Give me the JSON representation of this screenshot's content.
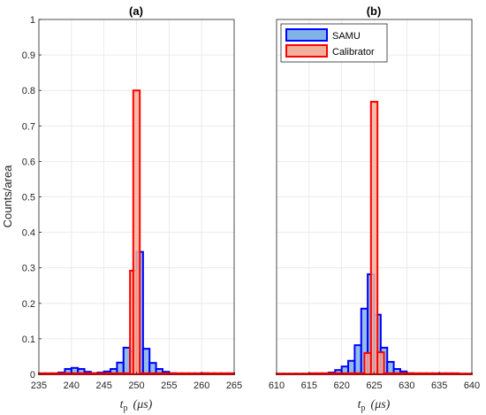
{
  "chart_data": [
    {
      "type": "bar",
      "title": "(a)",
      "ylabel": "Counts/area",
      "xlabel_main": "t",
      "xlabel_sub": "p",
      "xlabel_unit": "(μs)",
      "xlim": [
        235,
        265
      ],
      "ylim": [
        0,
        1
      ],
      "xticks": [
        "235",
        "240",
        "245",
        "250",
        "255",
        "260",
        "265"
      ],
      "yticks": [
        "0",
        "0.1",
        "0.2",
        "0.3",
        "0.4",
        "0.5",
        "0.6",
        "0.7",
        "0.8",
        "0.9",
        "1"
      ],
      "grid": true,
      "series": [
        {
          "name": "SAMU",
          "color": "#0000ff",
          "fill": "#7fb2e5",
          "x": [
            235.5,
            236.5,
            237.5,
            238.5,
            239.5,
            240.5,
            241.5,
            242.5,
            243.5,
            244.5,
            245.5,
            246.5,
            247.5,
            248.5,
            249.5,
            250.5,
            251.5,
            252.5,
            253.5,
            254.5,
            255.5,
            256.5,
            257.5,
            258.5,
            259.5,
            260.5,
            261.5,
            262.5,
            263.5,
            264.5
          ],
          "values": [
            0,
            0,
            0.002,
            0.005,
            0.015,
            0.018,
            0.015,
            0.007,
            0.003,
            0.005,
            0.008,
            0.015,
            0.033,
            0.075,
            0.065,
            0.345,
            0.072,
            0.032,
            0.015,
            0.007,
            0.003,
            0.002,
            0.002,
            0.002,
            0.002,
            0.003,
            0.002,
            0.001,
            0,
            0
          ]
        },
        {
          "name": "Calibrator",
          "color": "#ff0000",
          "fill": "#f2b09b",
          "x": [
            235.5,
            236.5,
            237.5,
            238.5,
            239.5,
            240.5,
            241.5,
            242.5,
            243.5,
            244.5,
            245.5,
            246.5,
            247.5,
            248.5,
            249.5,
            250.5,
            251.5,
            252.5,
            253.5,
            254.5,
            255.5,
            256.5,
            257.5,
            258.5,
            259.5,
            260.5,
            261.5,
            262.5,
            263.5,
            264.5
          ],
          "values": [
            0.003,
            0.003,
            0.003,
            0.003,
            0.003,
            0.003,
            0.003,
            0.003,
            0.003,
            0.003,
            0.003,
            0.003,
            0.003,
            0.003,
            0.003,
            0.003,
            0.003,
            0.003,
            0.003,
            0.003,
            0.003,
            0.003,
            0.003,
            0.003,
            0.003,
            0.003,
            0.003,
            0.003,
            0.003,
            0.003
          ],
          "peaks": [
            {
              "x": 249.5,
              "value": 0.292
            },
            {
              "x": 250.0,
              "value": 0.8
            }
          ]
        }
      ]
    },
    {
      "type": "bar",
      "title": "(b)",
      "xlabel_main": "t",
      "xlabel_sub": "p",
      "xlabel_unit": "(μs)",
      "xlim": [
        610,
        640
      ],
      "ylim": [
        0,
        1
      ],
      "xticks": [
        "610",
        "615",
        "620",
        "625",
        "630",
        "635",
        "640"
      ],
      "grid": true,
      "legend": {
        "position": "top-left",
        "entries": [
          "SAMU",
          "Calibrator"
        ]
      },
      "series": [
        {
          "name": "SAMU",
          "color": "#0000ff",
          "fill": "#7fb2e5",
          "x": [
            610.5,
            611.5,
            612.5,
            613.5,
            614.5,
            615.5,
            616.5,
            617.5,
            618.5,
            619.5,
            620.5,
            621.5,
            622.5,
            623.5,
            624.5,
            625.5,
            626.5,
            627.5,
            628.5,
            629.5,
            630.5,
            631.5,
            632.5,
            633.5,
            634.5,
            635.5,
            636.5,
            637.5,
            638.5,
            639.5
          ],
          "values": [
            0,
            0,
            0,
            0,
            0,
            0,
            0,
            0,
            0.005,
            0.012,
            0.022,
            0.038,
            0.082,
            0.185,
            0.282,
            0.168,
            0.075,
            0.035,
            0.015,
            0.008,
            0.003,
            0.002,
            0,
            0,
            0,
            0,
            0,
            0,
            0,
            0
          ]
        },
        {
          "name": "Calibrator",
          "color": "#ff0000",
          "fill": "#f2b09b",
          "x": [
            610.5,
            611.5,
            612.5,
            613.5,
            614.5,
            615.5,
            616.5,
            617.5,
            618.5,
            619.5,
            620.5,
            621.5,
            622.5,
            623.5,
            624.5,
            625.5,
            626.5,
            627.5,
            628.5,
            629.5,
            630.5,
            631.5,
            632.5,
            633.5,
            634.5,
            635.5,
            636.5,
            637.5,
            638.5,
            639.5
          ],
          "values": [
            0.002,
            0.002,
            0.002,
            0.002,
            0.002,
            0.003,
            0.003,
            0.003,
            0.003,
            0.003,
            0.003,
            0.003,
            0.003,
            0.003,
            0.003,
            0.003,
            0.003,
            0.003,
            0.003,
            0.003,
            0.003,
            0.003,
            0.003,
            0.003,
            0.003,
            0.003,
            0.003,
            0.003,
            0.002,
            0.002
          ],
          "peaks": [
            {
              "x": 624.0,
              "value": 0.06
            },
            {
              "x": 625.0,
              "value": 0.768
            },
            {
              "x": 626.0,
              "value": 0.062
            }
          ]
        }
      ]
    }
  ]
}
